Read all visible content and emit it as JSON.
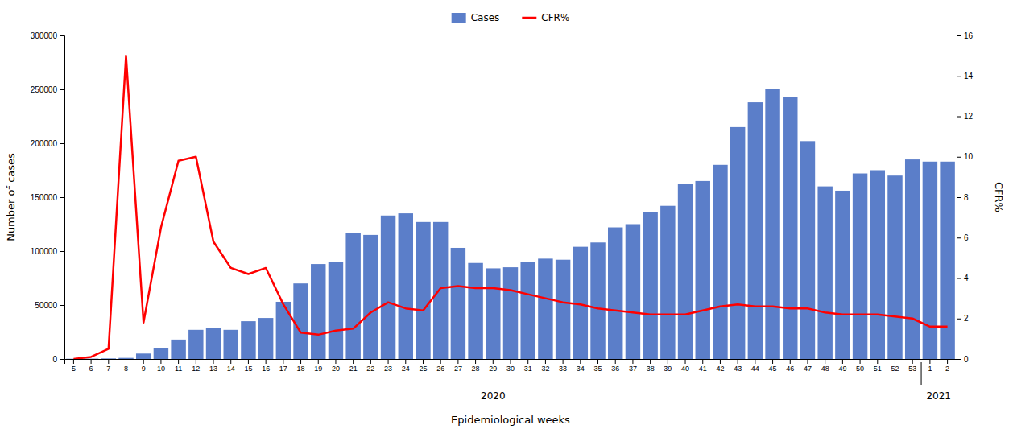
{
  "chart_data": {
    "type": "bar",
    "xlabel": "Epidemiological weeks",
    "ylabel": "Number of cases",
    "y2label": "CFR%",
    "categories": [
      "5",
      "6",
      "7",
      "8",
      "9",
      "10",
      "11",
      "12",
      "13",
      "14",
      "15",
      "16",
      "17",
      "18",
      "19",
      "20",
      "21",
      "22",
      "23",
      "24",
      "25",
      "26",
      "27",
      "28",
      "29",
      "30",
      "31",
      "32",
      "33",
      "34",
      "35",
      "36",
      "37",
      "38",
      "39",
      "40",
      "41",
      "42",
      "43",
      "44",
      "45",
      "46",
      "47",
      "48",
      "49",
      "50",
      "51",
      "52",
      "53",
      "1",
      "2"
    ],
    "series": [
      {
        "name": "Cases",
        "type": "bar",
        "color": "#5b7ec9",
        "values": [
          200,
          300,
          500,
          1000,
          5000,
          10000,
          18000,
          27000,
          29000,
          27000,
          35000,
          38000,
          53000,
          70000,
          88000,
          90000,
          117000,
          115000,
          133000,
          135000,
          127000,
          127000,
          103000,
          89000,
          84000,
          85000,
          90000,
          93000,
          92000,
          104000,
          108000,
          122000,
          125000,
          136000,
          142000,
          162000,
          165000,
          180000,
          215000,
          238000,
          250000,
          243000,
          202000,
          160000,
          156000,
          172000,
          175000,
          170000,
          185000,
          183000,
          183000
        ]
      },
      {
        "name": "CFR%",
        "type": "line",
        "axis": "y2",
        "color": "#ff0000",
        "values": [
          0.0,
          0.1,
          0.5,
          15.0,
          1.8,
          6.5,
          9.8,
          10.0,
          5.8,
          4.5,
          4.2,
          4.5,
          2.7,
          1.3,
          1.2,
          1.4,
          1.5,
          2.3,
          2.8,
          2.5,
          2.4,
          3.5,
          3.6,
          3.5,
          3.5,
          3.4,
          3.2,
          3.0,
          2.8,
          2.7,
          2.5,
          2.4,
          2.3,
          2.2,
          2.2,
          2.2,
          2.4,
          2.6,
          2.7,
          2.6,
          2.6,
          2.5,
          2.5,
          2.3,
          2.2,
          2.2,
          2.2,
          2.1,
          2.0,
          1.6,
          1.6
        ]
      }
    ],
    "ylim": [
      0,
      300000
    ],
    "yticks": [
      0,
      50000,
      100000,
      150000,
      200000,
      250000,
      300000
    ],
    "y2lim": [
      0,
      16
    ],
    "y2ticks": [
      0,
      2,
      4,
      6,
      8,
      10,
      12,
      14,
      16
    ],
    "annotations": [
      {
        "text": "2020"
      },
      {
        "text": "2021"
      }
    ],
    "grid": false,
    "legend": "top"
  }
}
